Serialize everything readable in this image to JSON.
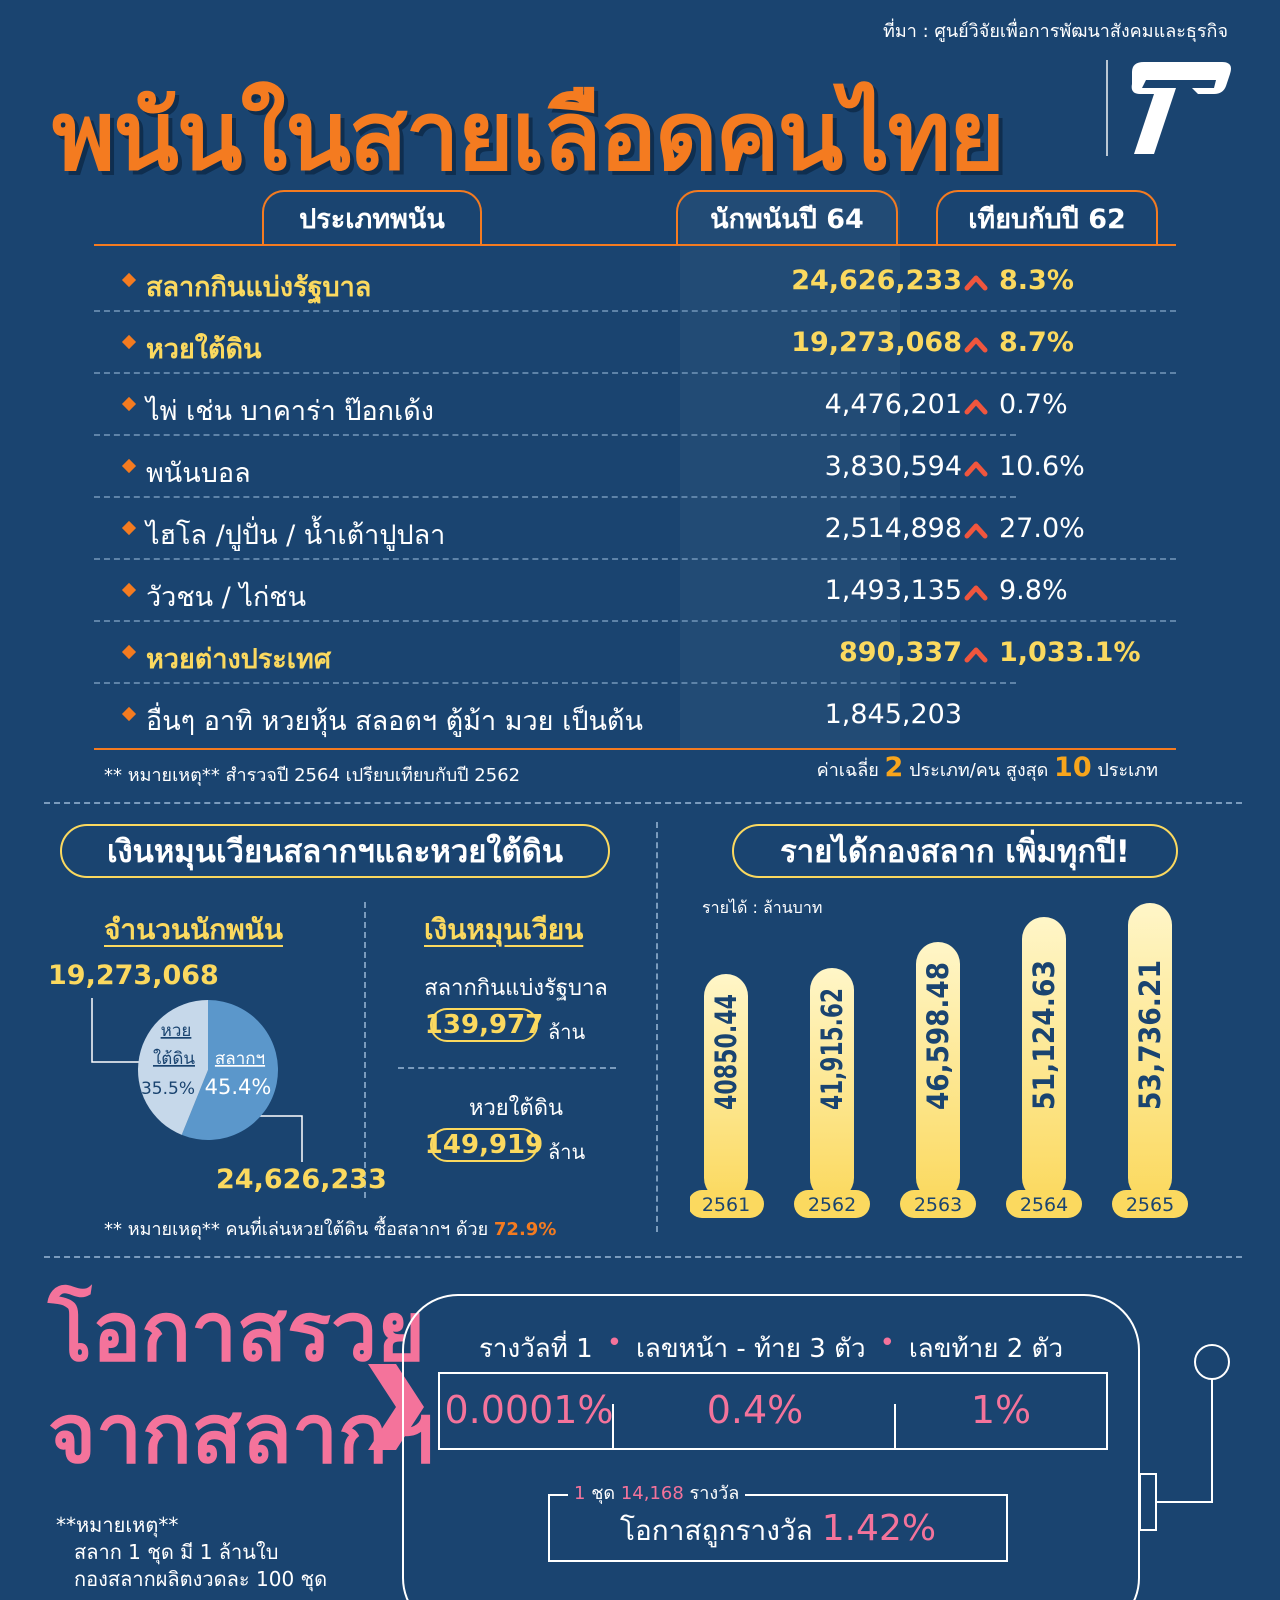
{
  "header": {
    "source": "ที่มา : ศูนย์วิจัยเพื่อการพัฒนาสังคมและธุรกิจ",
    "title": "พนันในสายเลือดคนไทย",
    "logo_icon": "t-logo-icon"
  },
  "table": {
    "headers": {
      "type": "ประเภทพนัน",
      "count": "นักพนันปี 64",
      "compare": "เทียบกับปี 62"
    },
    "rows": [
      {
        "label": "สลากกินแบ่งรัฐบาล",
        "count": "24,626,233",
        "change": "8.3%",
        "highlight": true
      },
      {
        "label": "หวยใต้ดิน",
        "count": "19,273,068",
        "change": "8.7%",
        "highlight": true
      },
      {
        "label": "ไพ่ เช่น บาคาร่า ป๊อกเด้ง",
        "count": "4,476,201",
        "change": "0.7%",
        "highlight": false
      },
      {
        "label": "พนันบอล",
        "count": "3,830,594",
        "change": "10.6%",
        "highlight": false
      },
      {
        "label": "ไฮโล /ปูปั่น / น้ำเต้าปูปลา",
        "count": "2,514,898",
        "change": "27.0%",
        "highlight": false
      },
      {
        "label": "วัวชน / ไก่ชน",
        "count": "1,493,135",
        "change": "9.8%",
        "highlight": false
      },
      {
        "label": "หวยต่างประเทศ",
        "count": "890,337",
        "change": "1,033.1%",
        "highlight": true
      },
      {
        "label": "อื่นๆ อาทิ หวยหุ้น สลอตฯ ตู้ม้า มวย เป็นต้น",
        "count": "1,845,203",
        "change": "",
        "highlight": false
      }
    ],
    "note_survey": "** หมายเหตุ** สำรวจปี 2564 เปรียบเทียบกับปี 2562",
    "note_avg_prefix": "ค่าเฉลี่ย",
    "note_avg_value": "2",
    "note_avg_middle": "ประเภท/คน สูงสุด",
    "note_avg_max": "10",
    "note_avg_suffix": "ประเภท",
    "up_arrow_color": "#f0563e"
  },
  "turnover": {
    "title": "เงินหมุนเวียนสลากฯและหวยใต้ดิน",
    "gamblers_heading": "จำนวนนักพนัน",
    "turnover_heading": "เงินหมุนเวียน",
    "pie": {
      "underground_label_1": "หวย",
      "underground_label_2": "ใต้ดิน",
      "underground_pct": "35.5%",
      "lottery_label": "สลากฯ",
      "lottery_pct": "45.4%",
      "underground_count": "19,273,068",
      "lottery_count": "24,626,233",
      "underground_share": 35.5,
      "lottery_share": 45.4,
      "colors": {
        "lottery": "#5b97cb",
        "underground": "#c6d8ea"
      }
    },
    "lottery_label": "สลากกินแบ่งรัฐบาล",
    "lottery_value": "139,977",
    "underground_label": "หวยใต้ดิน",
    "underground_value": "149,919",
    "unit": "ล้าน",
    "note_prefix": "** หมายเหตุ** คนที่เล่นหวยใต้ดิน ซื้อสลากฯ ด้วย",
    "note_pct": "72.9%"
  },
  "revenue": {
    "title": "รายได้กองสลาก เพิ่มทุกปี!",
    "unit_label": "รายได้ : ล้านบาท"
  },
  "chart_data": {
    "type": "bar",
    "categories": [
      "2561",
      "2562",
      "2563",
      "2564",
      "2565"
    ],
    "values": [
      40850.44,
      41915.62,
      46598.48,
      51124.63,
      53736.21
    ],
    "value_labels": [
      "40850.44",
      "41,915.62",
      "46,598.48",
      "51,124.63",
      "53,736.21"
    ],
    "title": "รายได้กองสลาก เพิ่มทุกปี!",
    "ylabel": "รายได้ : ล้านบาท",
    "ylim": [
      0,
      56000
    ],
    "grid": false,
    "bar_color_top": "#fff6c8",
    "bar_color_bottom": "#fbd95f"
  },
  "chances": {
    "title_line1": "โอกาสรวย",
    "title_line2": "จากสลากฯ",
    "note_title": "**หมายเหตุ**",
    "note_line1": "สลาก 1 ชุด มี 1 ล้านใบ",
    "note_line2": "กองสลากผลิตงวดละ 100 ชุด",
    "prizes": [
      {
        "name": "รางวัลที่ 1",
        "pct": "0.0001%"
      },
      {
        "name": "เลขหน้า - ท้าย 3 ตัว",
        "pct": "0.4%"
      },
      {
        "name": "เลขท้าย 2 ตัว",
        "pct": "1%"
      }
    ],
    "caption_num1": "1",
    "caption_mid": "ชุด",
    "caption_num2": "14,168",
    "caption_suffix": "รางวัล",
    "odds_label": "โอกาสถูกรางวัล",
    "odds_value": "1.42%",
    "accent": "#f4739b"
  }
}
